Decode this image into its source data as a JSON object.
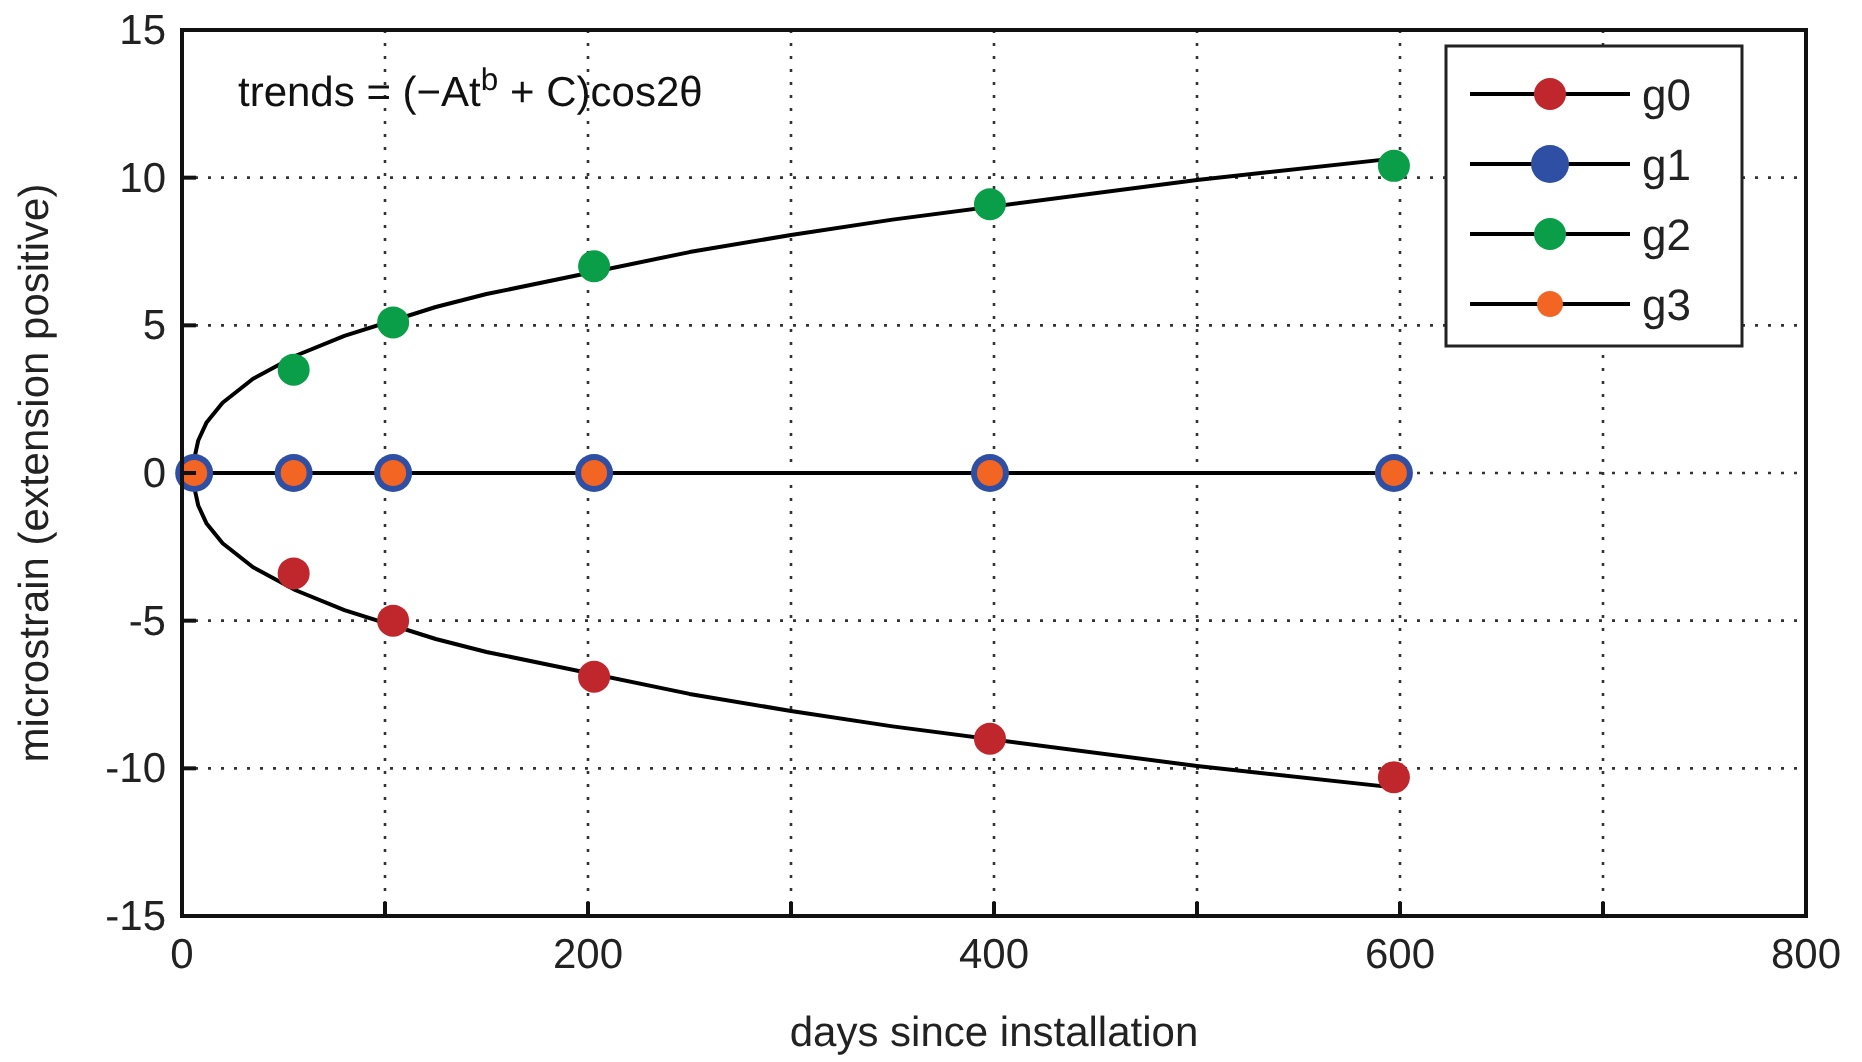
{
  "chart_data": {
    "type": "scatter",
    "xlabel": "days since installation",
    "ylabel": "microstrain (extension positive)",
    "annotations": [
      "trends = (−At$^{b}$ + C)cos2θ"
    ],
    "xlim": [
      0,
      800
    ],
    "xticks": [
      0,
      {
        "value": 100,
        "label": null
      },
      200,
      {
        "value": 300,
        "label": null
      },
      400,
      {
        "value": 500,
        "label": null
      },
      600,
      {
        "value": 700,
        "label": null
      },
      800
    ],
    "ylim": [
      -15,
      15
    ],
    "yticks": [
      -15,
      -10,
      -5,
      0,
      5,
      10,
      15
    ],
    "grid": true,
    "legend": "top right",
    "marker": "circle",
    "x": [
      6,
      55,
      104,
      203,
      398,
      597
    ],
    "series": [
      {
        "name": "g0",
        "color": "#c0272d",
        "values": [
          null,
          -3.4,
          -5.0,
          -6.9,
          -9.0,
          -10.3
        ]
      },
      {
        "name": "g1",
        "color": "#2e4fa3",
        "values": [
          0,
          0,
          0,
          0,
          0,
          0
        ]
      },
      {
        "name": "g2",
        "color": "#0a9e48",
        "values": [
          null,
          3.5,
          5.1,
          7.0,
          9.1,
          10.4
        ]
      },
      {
        "name": "g3",
        "color": "#f26522",
        "values": [
          0,
          0,
          0,
          0,
          0,
          0
        ]
      },
      {
        "type": "line",
        "color": "#000000",
        "marker": "none",
        "x": [
          6,
          6.5,
          8,
          12,
          20,
          35,
          56,
          80,
          125,
          150,
          250,
          300,
          350,
          500,
          600
        ],
        "values": [
          0,
          -0.63,
          -1.1,
          -1.7,
          -2.38,
          -3.19,
          -3.97,
          -4.64,
          -5.62,
          -6.06,
          -7.48,
          -8.06,
          -8.58,
          -9.92,
          -10.67
        ]
      },
      {
        "type": "line",
        "color": "#000000",
        "marker": "none",
        "x": [
          6,
          600
        ],
        "values": [
          0,
          0
        ]
      },
      {
        "type": "line",
        "color": "#000000",
        "marker": "none",
        "x": [
          6,
          6.5,
          8,
          12,
          20,
          35,
          56,
          80,
          125,
          150,
          250,
          300,
          350,
          500,
          600
        ],
        "values": [
          0,
          0.63,
          1.1,
          1.7,
          2.38,
          3.19,
          3.97,
          4.64,
          5.62,
          6.06,
          7.48,
          8.06,
          8.58,
          9.92,
          10.67
        ]
      }
    ]
  }
}
